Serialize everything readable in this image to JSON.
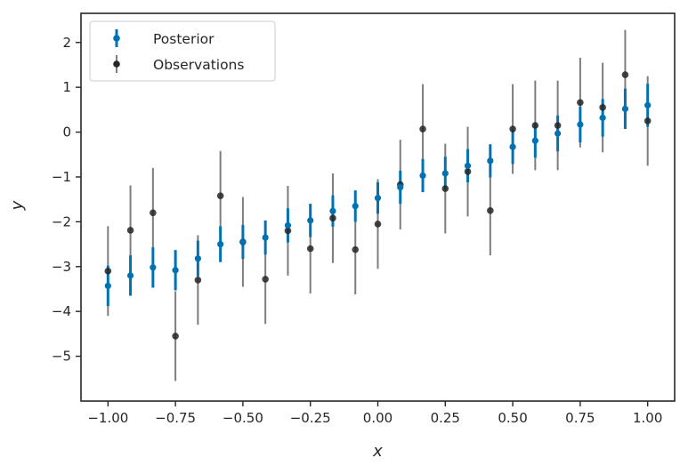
{
  "chart_data": {
    "type": "scatter",
    "title": "",
    "xlabel": "x",
    "ylabel": "y",
    "xlim": [
      -1.1,
      1.1
    ],
    "ylim": [
      -6.0,
      2.65
    ],
    "xticks": [
      -1.0,
      -0.75,
      -0.5,
      -0.25,
      0.0,
      0.25,
      0.5,
      0.75,
      1.0
    ],
    "xtick_labels": [
      "−1.00",
      "−0.75",
      "−0.50",
      "−0.25",
      "0.00",
      "0.25",
      "0.50",
      "0.75",
      "1.00"
    ],
    "yticks": [
      -5,
      -4,
      -3,
      -2,
      -1,
      0,
      1,
      2
    ],
    "ytick_labels": [
      "−5",
      "−4",
      "−3",
      "−2",
      "−1",
      "0",
      "1",
      "2"
    ],
    "grid": false,
    "legend": {
      "placement": "top-left"
    },
    "x": [
      -1.0,
      -0.9167,
      -0.8333,
      -0.75,
      -0.6667,
      -0.5833,
      -0.5,
      -0.4167,
      -0.3333,
      -0.25,
      -0.1667,
      -0.0833,
      0.0,
      0.0833,
      0.1667,
      0.25,
      0.3333,
      0.4167,
      0.5,
      0.5833,
      0.6667,
      0.75,
      0.8333,
      0.9167,
      1.0
    ],
    "series": [
      {
        "name": "Posterior",
        "color": "#0072b2",
        "y": [
          -3.43,
          -3.2,
          -3.02,
          -3.08,
          -2.82,
          -2.5,
          -2.45,
          -2.35,
          -2.08,
          -1.97,
          -1.76,
          -1.65,
          -1.47,
          -1.23,
          -0.97,
          -0.92,
          -0.75,
          -0.64,
          -0.33,
          -0.19,
          -0.03,
          0.17,
          0.32,
          0.52,
          0.6
        ],
        "err": [
          0.45,
          0.45,
          0.45,
          0.45,
          0.4,
          0.4,
          0.38,
          0.38,
          0.38,
          0.37,
          0.35,
          0.35,
          0.35,
          0.37,
          0.37,
          0.37,
          0.37,
          0.37,
          0.38,
          0.38,
          0.4,
          0.4,
          0.42,
          0.45,
          0.48
        ]
      },
      {
        "name": "Observations",
        "color": "#262626",
        "y": [
          -3.1,
          -2.19,
          -1.8,
          -4.55,
          -3.3,
          -1.42,
          -2.45,
          -3.28,
          -2.2,
          -2.6,
          -1.92,
          -2.62,
          -2.05,
          -1.17,
          0.07,
          -1.26,
          -0.88,
          -1.75,
          0.07,
          0.15,
          0.15,
          0.66,
          0.55,
          1.28,
          0.25
        ],
        "err": [
          1.0,
          1.0,
          1.0,
          1.0,
          1.0,
          1.0,
          1.0,
          1.0,
          1.0,
          1.0,
          1.0,
          1.0,
          1.0,
          1.0,
          1.0,
          1.0,
          1.0,
          1.0,
          1.0,
          1.0,
          1.0,
          1.0,
          1.0,
          1.0,
          1.0
        ]
      }
    ]
  }
}
